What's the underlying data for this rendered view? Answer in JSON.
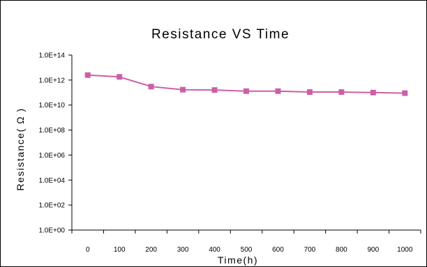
{
  "chart_data": {
    "type": "line",
    "title": "Resistance VS Time",
    "xlabel": "Time(h)",
    "ylabel": "Resistance( Ω )",
    "y_scale": "log",
    "ylim": [
      1,
      100000000000000
    ],
    "yticks": [
      "1.0E+00",
      "1.0E+02",
      "1.0E+04",
      "1.0E+06",
      "1.0E+08",
      "1.0E+10",
      "1.0E+12",
      "1.0E+14"
    ],
    "x_tick_labels": [
      "0",
      "100",
      "200",
      "300",
      "400",
      "500",
      "600",
      "700",
      "800",
      "900",
      "1000"
    ],
    "grid": false,
    "legend": "none",
    "marker": "square",
    "color": "#cc5fa8",
    "series": [
      {
        "x": [
          0,
          100,
          200,
          300,
          400,
          500,
          600,
          700,
          800,
          900,
          1000
        ],
        "values": [
          2500000000000,
          1800000000000,
          300000000000,
          170000000000,
          160000000000,
          130000000000,
          130000000000,
          110000000000,
          110000000000,
          100000000000,
          90000000000
        ]
      }
    ]
  }
}
